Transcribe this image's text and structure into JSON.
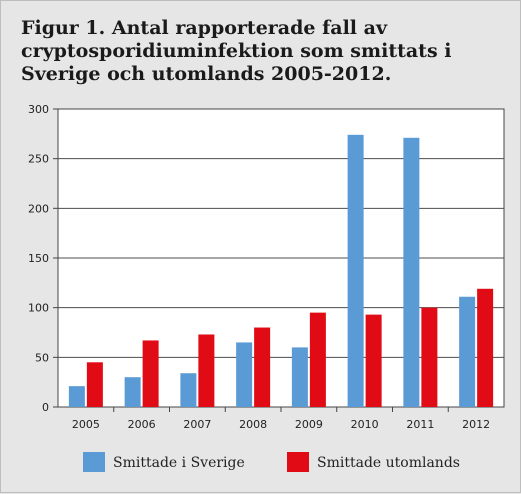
{
  "chart_data": {
    "type": "bar",
    "title": "Figur 1. Antal rapporterade fall av cryptosporidiuminfektion som smittats i Sverige och utomlands 2005-2012.",
    "categories": [
      "2005",
      "2006",
      "2007",
      "2008",
      "2009",
      "2010",
      "2011",
      "2012"
    ],
    "series": [
      {
        "name": "Smittade i Sverige",
        "color": "#5b9bd5",
        "values": [
          21,
          30,
          34,
          65,
          60,
          274,
          271,
          111
        ]
      },
      {
        "name": "Smittade utomlands",
        "color": "#e00b14",
        "values": [
          45,
          67,
          73,
          80,
          95,
          93,
          100,
          119
        ]
      }
    ],
    "ylim": [
      0,
      300
    ],
    "yticks": [
      0,
      50,
      100,
      150,
      200,
      250,
      300
    ],
    "xlabel": "",
    "ylabel": "",
    "grid": true,
    "legend_position": "bottom"
  }
}
